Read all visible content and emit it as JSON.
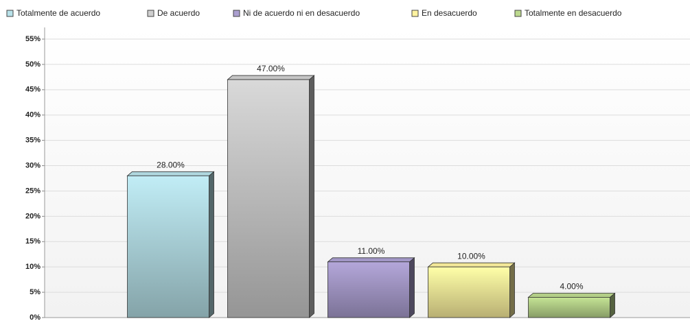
{
  "chart_data": {
    "type": "bar",
    "categories": [
      "Totalmente de acuerdo",
      "De acuerdo",
      "Ni de acuerdo ni en desacuerdo",
      "En desacuerdo",
      "Totalmente en desacuerdo"
    ],
    "values": [
      28,
      47,
      11,
      10,
      4
    ],
    "value_labels": [
      "28.00%",
      "47.00%",
      "11.00%",
      "10.00%",
      "4.00%"
    ],
    "colors": [
      "#b8e2ea",
      "#cfcfcf",
      "#ab9fd0",
      "#fff3a0",
      "#bcd98e"
    ],
    "ylim": [
      0,
      55
    ],
    "yticks": [
      {
        "value": 0,
        "label": "0%"
      },
      {
        "value": 5,
        "label": "5%"
      },
      {
        "value": 10,
        "label": "10%"
      },
      {
        "value": 15,
        "label": "15%"
      },
      {
        "value": 20,
        "label": "20%"
      },
      {
        "value": 25,
        "label": "25%"
      },
      {
        "value": 30,
        "label": "30%"
      },
      {
        "value": 35,
        "label": "35%"
      },
      {
        "value": 40,
        "label": "40%"
      },
      {
        "value": 45,
        "label": "45%"
      },
      {
        "value": 50,
        "label": "50%"
      },
      {
        "value": 55,
        "label": "55%"
      }
    ],
    "grid": true,
    "legend": "top"
  }
}
